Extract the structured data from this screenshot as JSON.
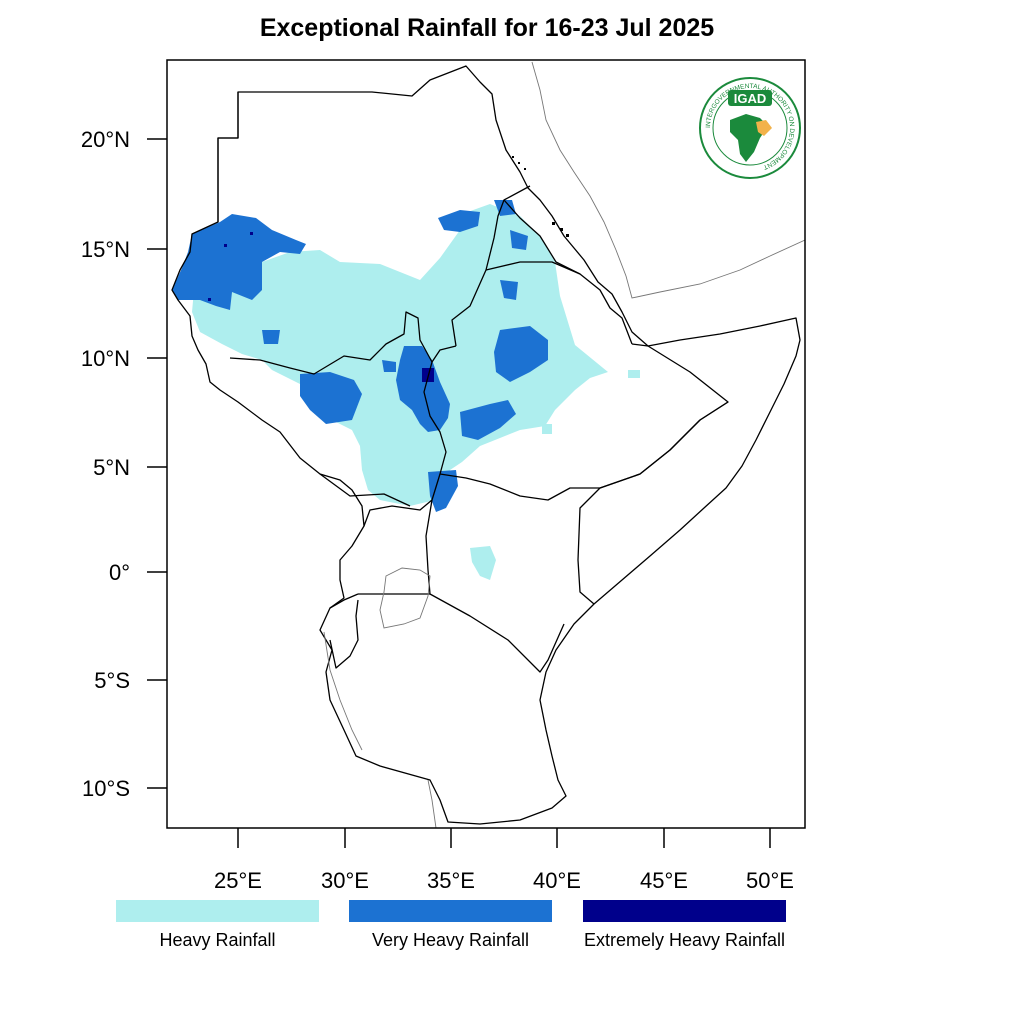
{
  "title": "Exceptional Rainfall for 16-23 Jul 2025",
  "logo": {
    "text": "IGAD",
    "ring_text": "INTERGOVERNMENTAL AUTHORITY ON DEVELOPMENT",
    "brand_color": "#1b8a3c"
  },
  "axes": {
    "lat_ticks": [
      "20°N",
      "15°N",
      "10°N",
      "5°N",
      "0°",
      "5°S",
      "10°S"
    ],
    "lon_ticks": [
      "25°E",
      "30°E",
      "35°E",
      "40°E",
      "45°E",
      "50°E"
    ],
    "lon_range": [
      21.7,
      51.7
    ],
    "lat_range": [
      -11.7,
      23.5
    ]
  },
  "legend": [
    {
      "label": "Heavy Rainfall",
      "color": "#aeeeee"
    },
    {
      "label": "Very Heavy Rainfall",
      "color": "#1c72d2"
    },
    {
      "label": "Extremely Heavy Rainfall",
      "color": "#00008b"
    }
  ]
}
